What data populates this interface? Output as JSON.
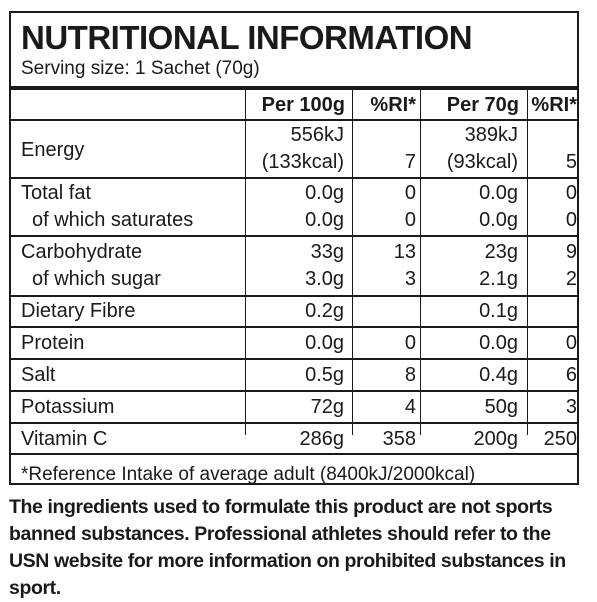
{
  "title": "NUTRITIONAL INFORMATION",
  "serving": "Serving size: 1 Sachet (70g)",
  "headers": {
    "per100": "Per 100g",
    "ri100": "%RI*",
    "per70": "Per 70g",
    "ri70": "%RI*"
  },
  "rows": {
    "energy": {
      "label": "Energy",
      "p100_kj": "556kJ",
      "p100_kcal": "(133kcal)",
      "ri100": "7",
      "p70_kj": "389kJ",
      "p70_kcal": "(93kcal)",
      "ri70": "5"
    },
    "fat": {
      "label": "Total fat",
      "p100": "0.0g",
      "ri100": "0",
      "p70": "0.0g",
      "ri70": "0"
    },
    "saturates": {
      "label": "of which saturates",
      "p100": "0.0g",
      "ri100": "0",
      "p70": "0.0g",
      "ri70": "0"
    },
    "carb": {
      "label": "Carbohydrate",
      "p100": "33g",
      "ri100": "13",
      "p70": "23g",
      "ri70": "9"
    },
    "sugar": {
      "label": "of which sugar",
      "p100": "3.0g",
      "ri100": "3",
      "p70": "2.1g",
      "ri70": "2"
    },
    "fibre": {
      "label": "Dietary Fibre",
      "p100": "0.2g",
      "ri100": "",
      "p70": "0.1g",
      "ri70": ""
    },
    "protein": {
      "label": "Protein",
      "p100": "0.0g",
      "ri100": "0",
      "p70": "0.0g",
      "ri70": "0"
    },
    "salt": {
      "label": "Salt",
      "p100": "0.5g",
      "ri100": "8",
      "p70": "0.4g",
      "ri70": "6"
    },
    "potassium": {
      "label": "Potassium",
      "p100": "72g",
      "ri100": "4",
      "p70": "50g",
      "ri70": "3"
    },
    "vitaminc": {
      "label": "Vitamin C",
      "p100": "286g",
      "ri100": "358",
      "p70": "200g",
      "ri70": "250"
    }
  },
  "footnote": "*Reference Intake of average adult (8400kJ/2000kcal)",
  "disclaimer": "The ingredients used to formulate this product are not sports banned substances. Professional athletes should refer to the USN website for more information on prohibited substances in sport."
}
